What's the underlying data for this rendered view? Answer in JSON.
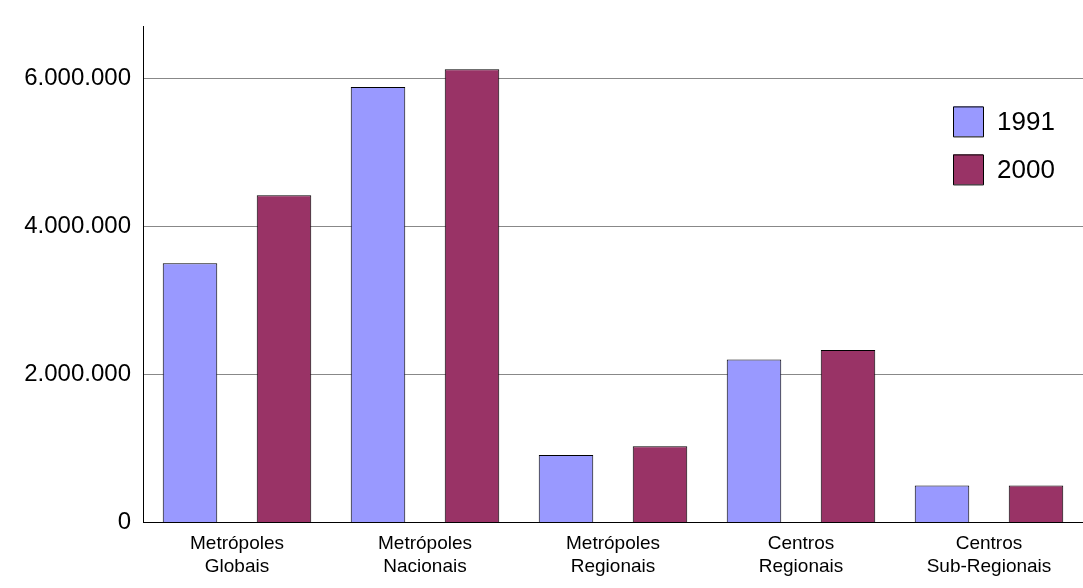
{
  "chart_data": {
    "type": "bar",
    "categories": [
      "Metrópoles Globais",
      "Metrópoles Nacionais",
      "Metrópoles Regionais",
      "Centros Regionais",
      "Centros Sub-Regionais"
    ],
    "series": [
      {
        "name": "1991",
        "color": "#9999ff",
        "values": [
          3500000,
          5880000,
          910000,
          2200000,
          500000
        ]
      },
      {
        "name": "2000",
        "color": "#993366",
        "values": [
          4420000,
          6120000,
          1030000,
          2330000,
          500000
        ]
      }
    ],
    "ylim": [
      0,
      6700000
    ],
    "yticks": [
      0,
      {
        "value": 2000000,
        "label": "2.000.000"
      },
      {
        "value": 4000000,
        "label": "4.000.000"
      },
      {
        "value": 6000000,
        "label": "6.000.000"
      }
    ],
    "grid": "y",
    "legend": "top right"
  }
}
